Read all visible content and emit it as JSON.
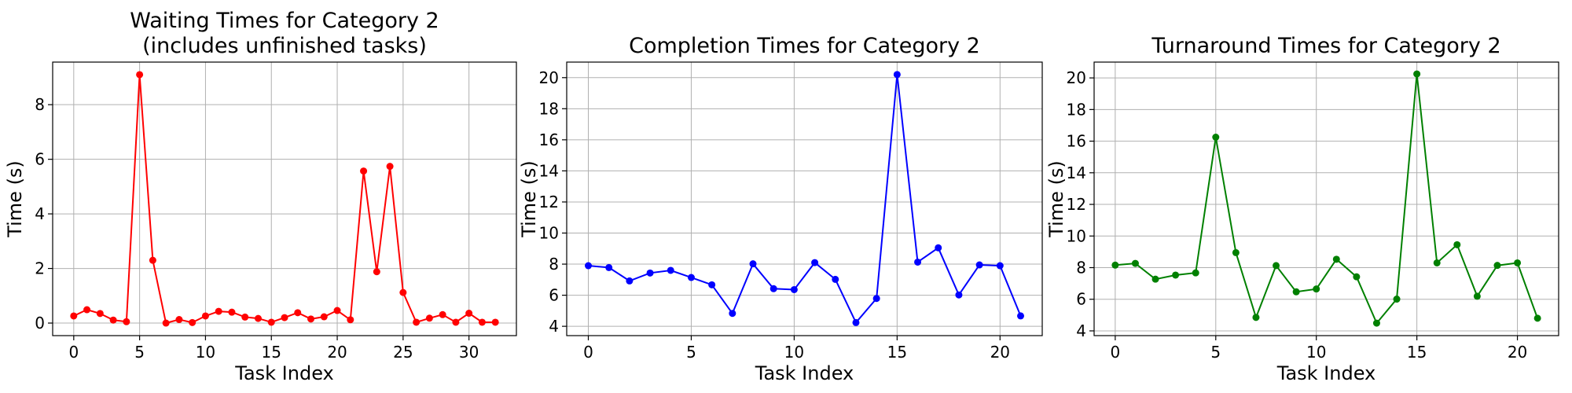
{
  "chart_data": [
    {
      "type": "line",
      "title": "Waiting Times for Category 2\n(includes unfinished tasks)",
      "xlabel": "Task Index",
      "ylabel": "Time (s)",
      "color": "#ff0000",
      "grid": true,
      "xlim": [
        -1.6,
        33.6
      ],
      "ylim": [
        -0.46,
        9.56
      ],
      "xticks": [
        0,
        5,
        10,
        15,
        20,
        25,
        30
      ],
      "yticks": [
        0,
        2,
        4,
        6,
        8
      ],
      "x": [
        0,
        1,
        2,
        3,
        4,
        5,
        6,
        7,
        8,
        9,
        10,
        11,
        12,
        13,
        14,
        15,
        16,
        17,
        18,
        19,
        20,
        21,
        22,
        23,
        24,
        25,
        26,
        27,
        28,
        29,
        30,
        31,
        32
      ],
      "values": [
        0.26,
        0.49,
        0.35,
        0.11,
        0.05,
        9.1,
        2.3,
        0.0,
        0.13,
        0.02,
        0.26,
        0.43,
        0.4,
        0.22,
        0.17,
        0.03,
        0.2,
        0.38,
        0.15,
        0.23,
        0.46,
        0.12,
        5.57,
        1.88,
        5.74,
        1.12,
        0.03,
        0.18,
        0.31,
        0.03,
        0.36,
        0.03,
        0.03
      ]
    },
    {
      "type": "line",
      "title": "Completion Times for Category 2",
      "xlabel": "Task Index",
      "ylabel": "Time (s)",
      "color": "#0000ff",
      "grid": true,
      "xlim": [
        -1.05,
        22.05
      ],
      "ylim": [
        3.4,
        21.0
      ],
      "xticks": [
        0,
        5,
        10,
        15,
        20
      ],
      "yticks": [
        4,
        6,
        8,
        10,
        12,
        14,
        16,
        18,
        20
      ],
      "x": [
        0,
        1,
        2,
        3,
        4,
        5,
        6,
        7,
        8,
        9,
        10,
        11,
        12,
        13,
        14,
        15,
        16,
        17,
        18,
        19,
        20,
        21
      ],
      "values": [
        7.9,
        7.78,
        6.92,
        7.43,
        7.6,
        7.14,
        6.67,
        4.83,
        8.02,
        6.42,
        6.36,
        8.1,
        7.02,
        4.24,
        5.79,
        20.2,
        8.13,
        9.05,
        6.02,
        7.95,
        7.9,
        4.67
      ]
    },
    {
      "type": "line",
      "title": "Turnaround Times for Category 2",
      "xlabel": "Task Index",
      "ylabel": "Time (s)",
      "color": "#008000",
      "grid": true,
      "xlim": [
        -1.05,
        22.05
      ],
      "ylim": [
        3.7,
        21.0
      ],
      "xticks": [
        0,
        5,
        10,
        15,
        20
      ],
      "yticks": [
        4,
        6,
        8,
        10,
        12,
        14,
        16,
        18,
        20
      ],
      "x": [
        0,
        1,
        2,
        3,
        4,
        5,
        6,
        7,
        8,
        9,
        10,
        11,
        12,
        13,
        14,
        15,
        16,
        17,
        18,
        19,
        20,
        21
      ],
      "values": [
        8.16,
        8.27,
        7.27,
        7.53,
        7.67,
        16.25,
        8.95,
        4.85,
        8.13,
        6.47,
        6.65,
        8.53,
        7.42,
        4.49,
        6.01,
        20.25,
        8.3,
        9.45,
        6.19,
        8.14,
        8.3,
        4.8
      ]
    }
  ]
}
